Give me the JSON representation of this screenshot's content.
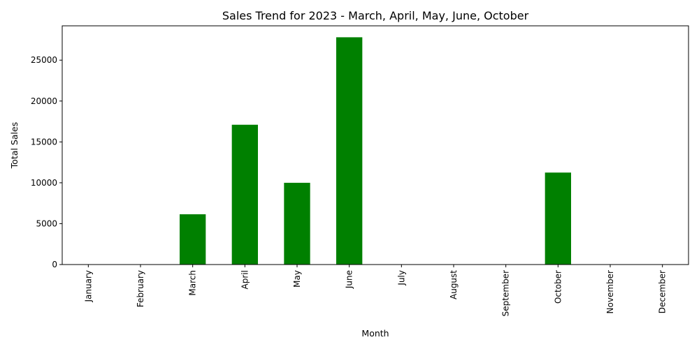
{
  "chart_data": {
    "type": "bar",
    "title": "Sales Trend for 2023 - March, April, May, June, October",
    "xlabel": "Month",
    "ylabel": "Total Sales",
    "categories": [
      "January",
      "February",
      "March",
      "April",
      "May",
      "June",
      "July",
      "August",
      "September",
      "October",
      "November",
      "December"
    ],
    "values": [
      0,
      0,
      6150,
      17100,
      10000,
      27800,
      0,
      0,
      0,
      11250,
      0,
      0
    ],
    "ylim": [
      0,
      29200
    ],
    "yticks": [
      0,
      5000,
      10000,
      15000,
      20000,
      25000
    ],
    "ytick_labels": [
      "0",
      "5000",
      "10000",
      "15000",
      "20000",
      "25000"
    ],
    "bar_color": "#008000",
    "grid": false,
    "legend": "none"
  }
}
